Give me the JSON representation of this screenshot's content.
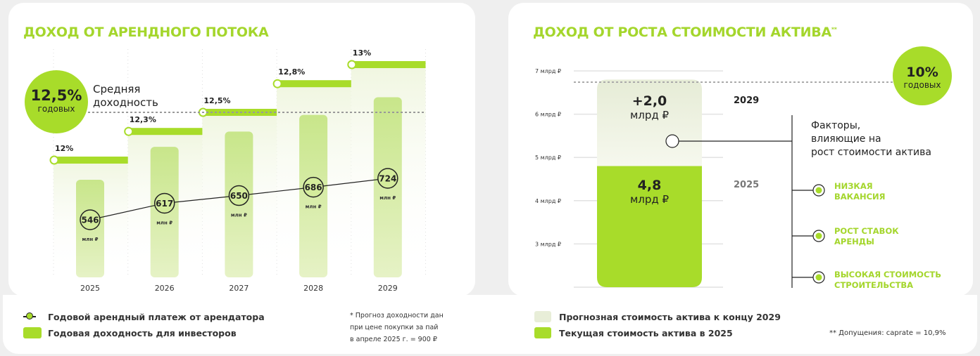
{
  "left": {
    "title": "ДОХОД ОТ АРЕНДНОГО ПОТОКА",
    "avg_badge": {
      "value": "12,5%",
      "unit": "годовых"
    },
    "avg_label": [
      "Средняя",
      "доходность"
    ],
    "legend": [
      "Годовой арендный платеж от арендатора",
      "Годовая доходность для инвесторов"
    ],
    "footnote": [
      "* Прогноз доходности дан",
      "при цене покупки за пай",
      "в апреле 2025 г. = 900 ₽"
    ]
  },
  "right": {
    "title": "ДОХОД ОТ РОСТА СТОИМОСТИ АКТИВА",
    "title_mark": "**",
    "badge": {
      "value": "10%",
      "unit": "годовых"
    },
    "growth": {
      "value": "+2,0",
      "unit": "млрд ₽",
      "year": "2029"
    },
    "current": {
      "value": "4,8",
      "unit": "млрд ₽",
      "year": "2025"
    },
    "factors_title": [
      "Факторы,",
      "влияющие на",
      "рост стоимости актива"
    ],
    "factors": [
      [
        "НИЗКАЯ",
        "ВАКАНСИЯ"
      ],
      [
        "РОСТ СТАВОК",
        "АРЕНДЫ"
      ],
      [
        "ВЫСОКАЯ СТОИМОСТЬ",
        "СТРОИТЕЛЬСТВА"
      ]
    ],
    "legend": [
      "Прогнозная стоимость актива к концу 2029",
      "Текущая стоимость актива в 2025"
    ],
    "footnote": "** Допущения: caprate = 10,9%"
  },
  "chart_data": [
    {
      "type": "bar",
      "title": "ДОХОД ОТ АРЕНДНОГО ПОТОКА",
      "categories": [
        "2025",
        "2026",
        "2027",
        "2028",
        "2029"
      ],
      "series": [
        {
          "name": "Годовой арендный платеж от арендатора",
          "unit": "млн ₽",
          "values": [
            546,
            617,
            650,
            686,
            724
          ],
          "labels": [
            "546",
            "617",
            "650",
            "686",
            "724"
          ]
        },
        {
          "name": "Годовая доходность для инвесторов",
          "unit": "%",
          "values": [
            12,
            12.3,
            12.5,
            12.8,
            13
          ],
          "labels": [
            "12%",
            "12,3%",
            "12,5%",
            "12,8%",
            "13%"
          ]
        }
      ],
      "average": 12.5,
      "value_unit_label": "млн ₽",
      "color": "#a8dc2a"
    },
    {
      "type": "bar",
      "title": "ДОХОД ОТ РОСТА СТОИМОСТИ АКТИВА",
      "stacked": true,
      "yticks": [
        "3 млрд ₽",
        "4 млрд ₽",
        "5 млрд ₽",
        "6 млрд ₽",
        "7 млрд ₽"
      ],
      "ylim": [
        2,
        7
      ],
      "series": [
        {
          "name": "Текущая стоимость актива в 2025",
          "value": 4.8
        },
        {
          "name": "Прогнозная стоимость актива к концу 2029",
          "value": 6.8
        }
      ]
    }
  ]
}
